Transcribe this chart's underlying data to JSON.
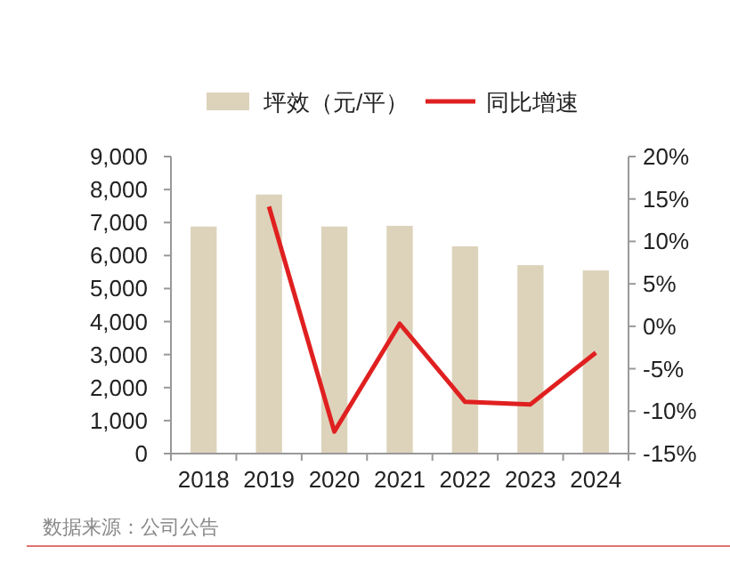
{
  "chart_data": {
    "type": "bar",
    "categories": [
      "2018",
      "2019",
      "2020",
      "2021",
      "2022",
      "2023",
      "2024"
    ],
    "series": [
      {
        "name": "坪效（元/平）",
        "type": "bar",
        "color": "#ddd3bb",
        "values": [
          6880,
          7850,
          6880,
          6900,
          6280,
          5710,
          5550
        ]
      },
      {
        "name": "同比增速",
        "type": "line",
        "axis": "y2",
        "color": "#e02020",
        "values": [
          null,
          14.1,
          -12.4,
          0.3,
          -8.9,
          -9.2,
          -3.1
        ]
      }
    ],
    "ylim": [
      0,
      9000
    ],
    "yticks": [
      {
        "value": 0,
        "label": "0"
      },
      {
        "value": 1000,
        "label": "1,000"
      },
      {
        "value": 2000,
        "label": "2,000"
      },
      {
        "value": 3000,
        "label": "3,000"
      },
      {
        "value": 4000,
        "label": "4,000"
      },
      {
        "value": 5000,
        "label": "5,000"
      },
      {
        "value": 6000,
        "label": "6,000"
      },
      {
        "value": 7000,
        "label": "7,000"
      },
      {
        "value": 8000,
        "label": "8,000"
      },
      {
        "value": 9000,
        "label": "9,000"
      }
    ],
    "y2lim": [
      -15,
      20
    ],
    "y2ticks": [
      {
        "value": -15,
        "label": "-15%"
      },
      {
        "value": -10,
        "label": "-10%"
      },
      {
        "value": -5,
        "label": "-5%"
      },
      {
        "value": 0,
        "label": "0%"
      },
      {
        "value": 5,
        "label": "5%"
      },
      {
        "value": 10,
        "label": "10%"
      },
      {
        "value": 15,
        "label": "15%"
      },
      {
        "value": 20,
        "label": "20%"
      }
    ],
    "legend": "top",
    "grid": false,
    "marker": "none",
    "line_style": "solid",
    "annotations": [
      "数据来源：公司公告"
    ]
  }
}
